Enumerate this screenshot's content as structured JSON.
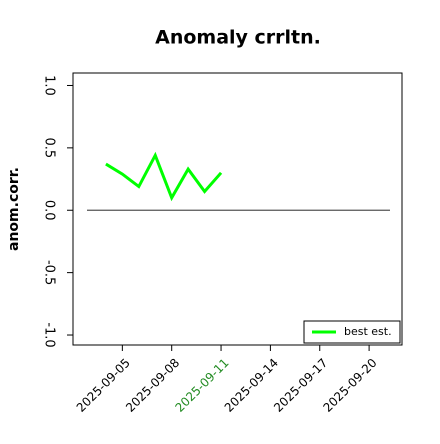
{
  "chart_data": {
    "type": "line",
    "title": "Anomaly crrltn.",
    "ylabel": "anom.corr.",
    "x": [
      "2025-09-04",
      "2025-09-05",
      "2025-09-06",
      "2025-09-07",
      "2025-09-08",
      "2025-09-09",
      "2025-09-10",
      "2025-09-11"
    ],
    "series": [
      {
        "name": "best est.",
        "color": "#00ff00",
        "values": [
          0.37,
          0.29,
          0.19,
          0.44,
          0.1,
          0.33,
          0.15,
          0.3
        ]
      }
    ],
    "xlim": [
      "2025-09-02",
      "2025-09-22"
    ],
    "xticks": [
      "2025-09-05",
      "2025-09-08",
      "2025-09-11",
      "2025-09-14",
      "2025-09-17",
      "2025-09-20"
    ],
    "highlight_xtick": {
      "date": "2025-09-11",
      "color": "#228b22"
    },
    "ylim": [
      -1.08,
      1.1
    ],
    "yticks": [
      {
        "value": -1,
        "label": "-1.0"
      },
      {
        "value": -0.5,
        "label": "-0.5"
      },
      {
        "value": 0,
        "label": "0.0"
      },
      {
        "value": 0.5,
        "label": "0.5"
      },
      {
        "value": 1,
        "label": "1.0"
      }
    ],
    "hline": {
      "y": 0,
      "color": "#555555"
    },
    "legend": "lower right"
  }
}
